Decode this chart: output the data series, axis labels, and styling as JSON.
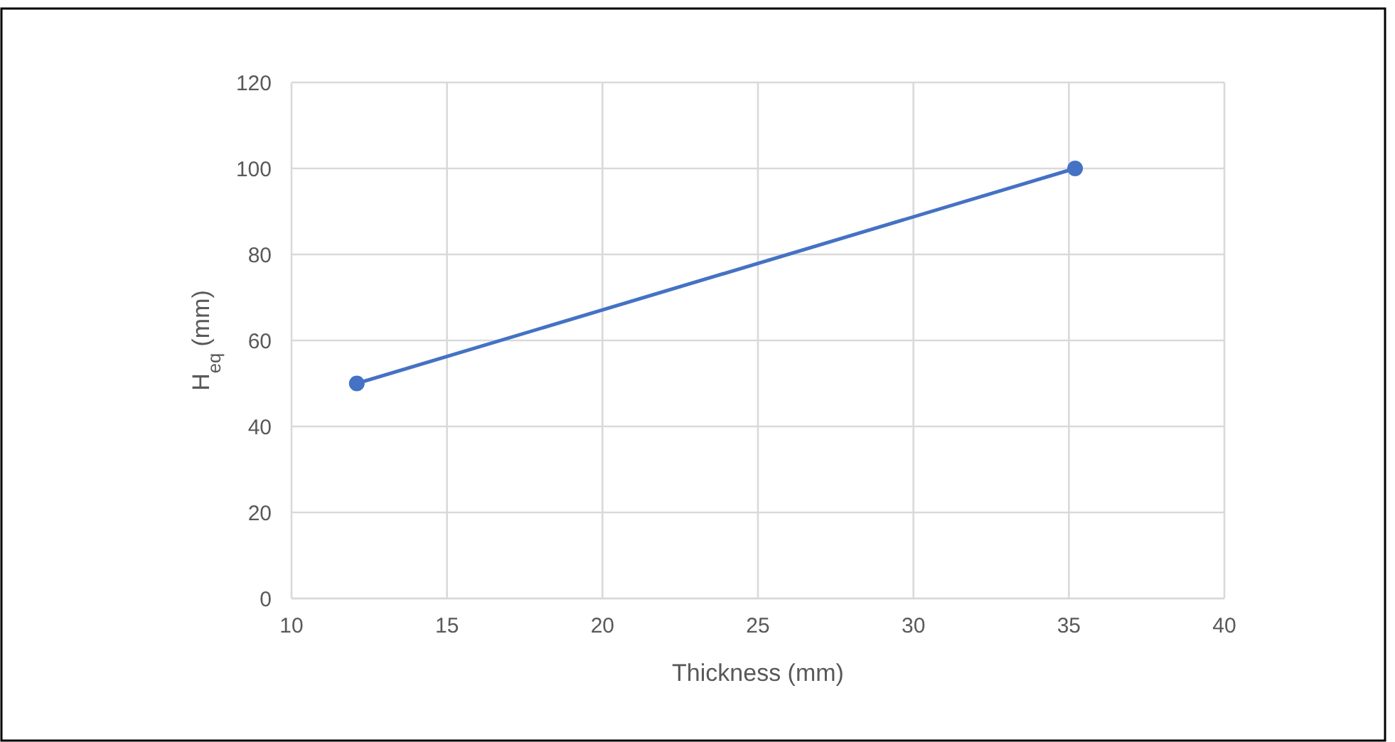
{
  "chart_data": {
    "type": "line",
    "xlabel": "Thickness (mm)",
    "ylabel": "H$_{eq}$ (mm)",
    "x": [
      12.1,
      35.2
    ],
    "series": [
      {
        "color": "#4472c4",
        "values": [
          50,
          100
        ]
      }
    ],
    "xlim": [
      10,
      40
    ],
    "xticks": [
      10,
      15,
      20,
      25,
      30,
      35,
      40
    ],
    "ylim": [
      0,
      120
    ],
    "yticks": [
      0,
      20,
      40,
      60,
      80,
      100,
      120
    ],
    "grid": true,
    "marker": "circle",
    "line_style": "solid"
  }
}
